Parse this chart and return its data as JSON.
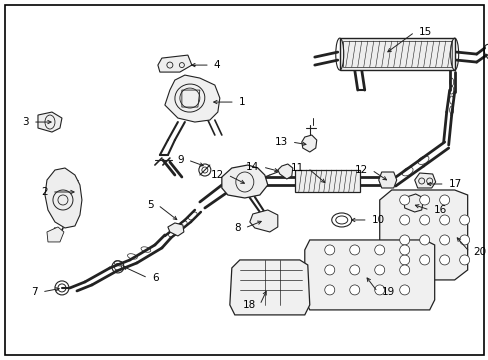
{
  "bg_color": "#ffffff",
  "border_color": "#000000",
  "line_color": "#222222",
  "fig_width": 4.89,
  "fig_height": 3.6,
  "label_fontsize": 7.5
}
